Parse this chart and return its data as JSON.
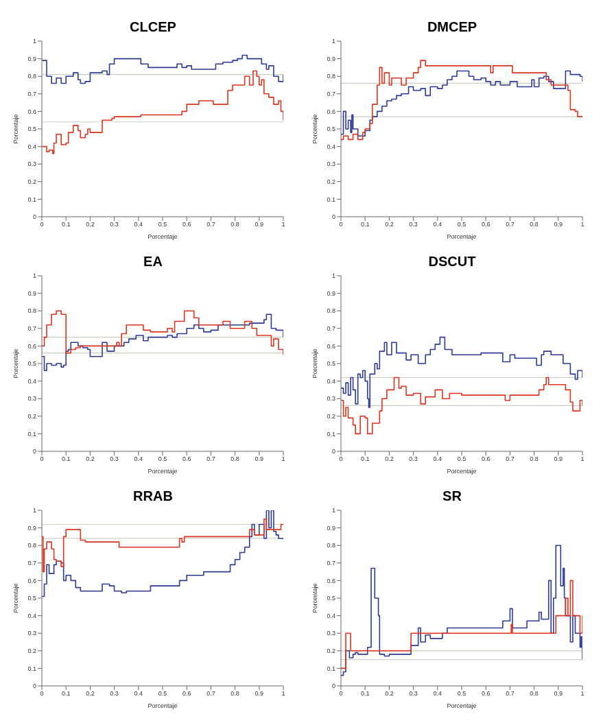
{
  "chart_data": [
    {
      "type": "step",
      "title": "CLCEP",
      "xlabel": "Porcentaje",
      "ylabel": "Porcentaje",
      "xlim": [
        0,
        1
      ],
      "ylim": [
        0,
        1
      ],
      "xticks": [
        0,
        0.1,
        0.2,
        0.3,
        0.4,
        0.5,
        0.6,
        0.7,
        0.8,
        0.9,
        1
      ],
      "yticks": [
        0,
        0.1,
        0.2,
        0.3,
        0.4,
        0.5,
        0.6,
        0.7,
        0.8,
        0.9,
        1
      ],
      "ref_lines": [
        {
          "axis": "y",
          "value": 0.81,
          "color": "#c8cfc0"
        },
        {
          "axis": "y",
          "value": 0.54,
          "color": "#c8cfc0"
        }
      ],
      "series": [
        {
          "color": "#2b3a97",
          "x": [
            0,
            0.02,
            0.04,
            0.06,
            0.08,
            0.1,
            0.12,
            0.13,
            0.15,
            0.16,
            0.18,
            0.2,
            0.25,
            0.27,
            0.28,
            0.3,
            0.4,
            0.41,
            0.44,
            0.55,
            0.56,
            0.58,
            0.6,
            0.62,
            0.7,
            0.72,
            0.75,
            0.79,
            0.81,
            0.83,
            0.85,
            0.9,
            0.91,
            0.93,
            0.94,
            0.96,
            0.98,
            1
          ],
          "values": [
            0.89,
            0.8,
            0.76,
            0.79,
            0.76,
            0.8,
            0.8,
            0.82,
            0.78,
            0.76,
            0.77,
            0.82,
            0.83,
            0.81,
            0.87,
            0.9,
            0.9,
            0.87,
            0.85,
            0.85,
            0.87,
            0.85,
            0.86,
            0.84,
            0.84,
            0.87,
            0.88,
            0.89,
            0.9,
            0.92,
            0.9,
            0.9,
            0.87,
            0.84,
            0.86,
            0.8,
            0.77,
            0.81
          ]
        },
        {
          "color": "#e0321c",
          "x": [
            0,
            0.02,
            0.03,
            0.045,
            0.05,
            0.06,
            0.08,
            0.1,
            0.11,
            0.13,
            0.15,
            0.16,
            0.18,
            0.19,
            0.2,
            0.24,
            0.25,
            0.29,
            0.3,
            0.4,
            0.41,
            0.57,
            0.58,
            0.6,
            0.65,
            0.71,
            0.76,
            0.77,
            0.79,
            0.82,
            0.84,
            0.86,
            0.875,
            0.89,
            0.9,
            0.91,
            0.92,
            0.94,
            0.96,
            0.98,
            0.99,
            1
          ],
          "values": [
            0.4,
            0.37,
            0.38,
            0.36,
            0.42,
            0.47,
            0.41,
            0.42,
            0.48,
            0.52,
            0.49,
            0.45,
            0.47,
            0.5,
            0.48,
            0.48,
            0.55,
            0.56,
            0.57,
            0.57,
            0.58,
            0.58,
            0.6,
            0.64,
            0.66,
            0.64,
            0.64,
            0.72,
            0.75,
            0.75,
            0.8,
            0.75,
            0.83,
            0.8,
            0.75,
            0.78,
            0.7,
            0.68,
            0.64,
            0.66,
            0.6,
            0.55
          ]
        }
      ]
    },
    {
      "type": "step",
      "title": "DMCEP",
      "xlabel": "Porcentaje",
      "ylabel": "Porcentaje",
      "xlim": [
        0,
        1
      ],
      "ylim": [
        0,
        1
      ],
      "xticks": [
        0,
        0.1,
        0.2,
        0.3,
        0.4,
        0.5,
        0.6,
        0.7,
        0.8,
        0.9,
        1
      ],
      "yticks": [
        0,
        0.1,
        0.2,
        0.3,
        0.4,
        0.5,
        0.6,
        0.7,
        0.8,
        0.9,
        1
      ],
      "ref_lines": [
        {
          "axis": "y",
          "value": 0.76,
          "color": "#c8cfc0"
        },
        {
          "axis": "y",
          "value": 0.57,
          "color": "#c8cfc0"
        }
      ],
      "series": [
        {
          "color": "#2b3a97",
          "x": [
            0,
            0.01,
            0.02,
            0.03,
            0.04,
            0.045,
            0.05,
            0.07,
            0.09,
            0.1,
            0.12,
            0.13,
            0.15,
            0.17,
            0.19,
            0.21,
            0.23,
            0.25,
            0.28,
            0.3,
            0.33,
            0.35,
            0.37,
            0.4,
            0.42,
            0.44,
            0.46,
            0.48,
            0.51,
            0.53,
            0.55,
            0.58,
            0.6,
            0.62,
            0.64,
            0.66,
            0.7,
            0.73,
            0.77,
            0.79,
            0.8,
            0.82,
            0.84,
            0.86,
            0.88,
            0.91,
            0.93,
            0.95,
            0.99,
            1
          ],
          "values": [
            0.47,
            0.6,
            0.5,
            0.55,
            0.48,
            0.58,
            0.5,
            0.46,
            0.46,
            0.49,
            0.55,
            0.57,
            0.6,
            0.63,
            0.66,
            0.67,
            0.69,
            0.7,
            0.74,
            0.72,
            0.73,
            0.69,
            0.74,
            0.73,
            0.75,
            0.78,
            0.8,
            0.83,
            0.83,
            0.8,
            0.78,
            0.79,
            0.77,
            0.75,
            0.77,
            0.75,
            0.77,
            0.74,
            0.74,
            0.78,
            0.74,
            0.79,
            0.8,
            0.77,
            0.73,
            0.73,
            0.83,
            0.81,
            0.8,
            0.77
          ]
        },
        {
          "color": "#e0321c",
          "x": [
            0,
            0.01,
            0.03,
            0.05,
            0.07,
            0.09,
            0.1,
            0.12,
            0.13,
            0.15,
            0.16,
            0.17,
            0.18,
            0.2,
            0.21,
            0.24,
            0.25,
            0.27,
            0.3,
            0.32,
            0.33,
            0.35,
            0.61,
            0.62,
            0.63,
            0.7,
            0.71,
            0.84,
            0.85,
            0.87,
            0.93,
            0.94,
            0.95,
            0.97,
            0.98,
            1
          ],
          "values": [
            0.44,
            0.46,
            0.44,
            0.47,
            0.44,
            0.48,
            0.5,
            0.53,
            0.64,
            0.75,
            0.85,
            0.76,
            0.82,
            0.75,
            0.79,
            0.79,
            0.75,
            0.79,
            0.82,
            0.85,
            0.89,
            0.86,
            0.86,
            0.82,
            0.86,
            0.86,
            0.82,
            0.82,
            0.78,
            0.75,
            0.75,
            0.72,
            0.61,
            0.6,
            0.57,
            0.57
          ]
        }
      ]
    },
    {
      "type": "step",
      "title": "EA",
      "xlabel": "Porcentaje",
      "ylabel": "Porcentaje",
      "xlim": [
        0,
        1
      ],
      "ylim": [
        0,
        1
      ],
      "xticks": [
        0,
        0.1,
        0.2,
        0.3,
        0.4,
        0.5,
        0.6,
        0.7,
        0.8,
        0.9,
        1
      ],
      "yticks": [
        0,
        0.1,
        0.2,
        0.3,
        0.4,
        0.5,
        0.6,
        0.7,
        0.8,
        0.9,
        1
      ],
      "ref_lines": [
        {
          "axis": "y",
          "value": 0.65,
          "color": "#c8cfc0"
        },
        {
          "axis": "y",
          "value": 0.56,
          "color": "#c8cfc0"
        }
      ],
      "series": [
        {
          "color": "#2b3a97",
          "x": [
            0,
            0.01,
            0.02,
            0.04,
            0.06,
            0.08,
            0.09,
            0.1,
            0.11,
            0.12,
            0.15,
            0.17,
            0.19,
            0.2,
            0.24,
            0.25,
            0.27,
            0.3,
            0.32,
            0.34,
            0.36,
            0.39,
            0.42,
            0.44,
            0.49,
            0.52,
            0.54,
            0.56,
            0.6,
            0.63,
            0.65,
            0.67,
            0.7,
            0.73,
            0.8,
            0.86,
            0.9,
            0.92,
            0.93,
            0.94,
            0.95,
            0.97,
            1
          ],
          "values": [
            0.54,
            0.46,
            0.5,
            0.49,
            0.5,
            0.48,
            0.49,
            0.57,
            0.58,
            0.62,
            0.6,
            0.59,
            0.58,
            0.54,
            0.54,
            0.62,
            0.57,
            0.6,
            0.6,
            0.62,
            0.64,
            0.66,
            0.63,
            0.65,
            0.65,
            0.66,
            0.65,
            0.67,
            0.7,
            0.72,
            0.7,
            0.68,
            0.69,
            0.72,
            0.72,
            0.73,
            0.73,
            0.75,
            0.78,
            0.78,
            0.7,
            0.69,
            0.65
          ]
        },
        {
          "color": "#e0321c",
          "x": [
            0,
            0.01,
            0.02,
            0.04,
            0.06,
            0.07,
            0.08,
            0.09,
            0.1,
            0.12,
            0.14,
            0.16,
            0.3,
            0.31,
            0.32,
            0.33,
            0.35,
            0.4,
            0.42,
            0.45,
            0.51,
            0.52,
            0.54,
            0.55,
            0.58,
            0.59,
            0.62,
            0.63,
            0.65,
            0.71,
            0.75,
            0.78,
            0.83,
            0.84,
            0.87,
            0.89,
            0.94,
            0.95,
            0.96,
            0.98,
            1
          ],
          "values": [
            0.6,
            0.65,
            0.72,
            0.78,
            0.8,
            0.8,
            0.78,
            0.78,
            0.56,
            0.58,
            0.59,
            0.6,
            0.6,
            0.62,
            0.6,
            0.67,
            0.72,
            0.72,
            0.69,
            0.68,
            0.68,
            0.7,
            0.68,
            0.74,
            0.74,
            0.8,
            0.8,
            0.76,
            0.72,
            0.72,
            0.74,
            0.7,
            0.7,
            0.74,
            0.7,
            0.66,
            0.66,
            0.6,
            0.64,
            0.58,
            0.55
          ]
        }
      ]
    },
    {
      "type": "step",
      "title": "DSCUT",
      "xlabel": "Porcentaje",
      "ylabel": "Porcentaje",
      "xlim": [
        0,
        1
      ],
      "ylim": [
        0,
        1
      ],
      "xticks": [
        0,
        0.1,
        0.2,
        0.3,
        0.4,
        0.5,
        0.6,
        0.7,
        0.8,
        0.9,
        1
      ],
      "yticks": [
        0,
        0.1,
        0.2,
        0.3,
        0.4,
        0.5,
        0.6,
        0.7,
        0.8,
        0.9,
        1
      ],
      "ref_lines": [
        {
          "axis": "y",
          "value": 0.42,
          "color": "#c8cfc0"
        },
        {
          "axis": "y",
          "value": 0.26,
          "color": "#c8cfc0"
        }
      ],
      "series": [
        {
          "color": "#2b3a97",
          "x": [
            0,
            0.01,
            0.02,
            0.03,
            0.04,
            0.05,
            0.06,
            0.07,
            0.08,
            0.09,
            0.1,
            0.11,
            0.115,
            0.12,
            0.14,
            0.15,
            0.16,
            0.18,
            0.19,
            0.21,
            0.23,
            0.25,
            0.27,
            0.29,
            0.32,
            0.35,
            0.37,
            0.39,
            0.41,
            0.43,
            0.46,
            0.54,
            0.58,
            0.66,
            0.67,
            0.7,
            0.72,
            0.8,
            0.81,
            0.83,
            0.84,
            0.87,
            0.9,
            0.92,
            0.95,
            0.97,
            0.98,
            1
          ],
          "values": [
            0.36,
            0.33,
            0.39,
            0.32,
            0.42,
            0.35,
            0.27,
            0.44,
            0.42,
            0.46,
            0.4,
            0.3,
            0.25,
            0.44,
            0.5,
            0.47,
            0.57,
            0.62,
            0.55,
            0.62,
            0.56,
            0.56,
            0.52,
            0.55,
            0.5,
            0.55,
            0.58,
            0.61,
            0.65,
            0.58,
            0.55,
            0.55,
            0.56,
            0.56,
            0.51,
            0.55,
            0.53,
            0.53,
            0.49,
            0.55,
            0.57,
            0.55,
            0.55,
            0.5,
            0.44,
            0.41,
            0.46,
            0.42
          ]
        },
        {
          "color": "#e0321c",
          "x": [
            0,
            0.01,
            0.02,
            0.03,
            0.05,
            0.06,
            0.08,
            0.1,
            0.11,
            0.13,
            0.15,
            0.16,
            0.17,
            0.19,
            0.22,
            0.24,
            0.25,
            0.27,
            0.3,
            0.33,
            0.35,
            0.39,
            0.42,
            0.45,
            0.5,
            0.67,
            0.68,
            0.7,
            0.8,
            0.82,
            0.84,
            0.85,
            0.86,
            0.92,
            0.93,
            0.95,
            0.96,
            0.98,
            0.99,
            1
          ],
          "values": [
            0.29,
            0.2,
            0.25,
            0.19,
            0.15,
            0.1,
            0.2,
            0.19,
            0.1,
            0.16,
            0.16,
            0.23,
            0.3,
            0.35,
            0.42,
            0.36,
            0.37,
            0.32,
            0.33,
            0.27,
            0.31,
            0.35,
            0.3,
            0.33,
            0.32,
            0.32,
            0.29,
            0.32,
            0.32,
            0.35,
            0.38,
            0.42,
            0.38,
            0.38,
            0.35,
            0.28,
            0.23,
            0.23,
            0.29,
            0.26
          ]
        }
      ]
    },
    {
      "type": "step",
      "title": "RRAB",
      "xlabel": "Porcentaje",
      "ylabel": "Porcentaje",
      "xlim": [
        0,
        1
      ],
      "ylim": [
        0,
        1
      ],
      "xticks": [
        0,
        0.1,
        0.2,
        0.3,
        0.4,
        0.5,
        0.6,
        0.7,
        0.8,
        0.9,
        1
      ],
      "yticks": [
        0,
        0.1,
        0.2,
        0.3,
        0.4,
        0.5,
        0.6,
        0.7,
        0.8,
        0.9,
        1
      ],
      "ref_lines": [
        {
          "axis": "y",
          "value": 0.92,
          "color": "#c8cfc0"
        },
        {
          "axis": "y",
          "value": 0.84,
          "color": "#c8cfc0"
        }
      ],
      "series": [
        {
          "color": "#2b3a97",
          "x": [
            0,
            0.01,
            0.02,
            0.03,
            0.05,
            0.06,
            0.08,
            0.09,
            0.1,
            0.12,
            0.14,
            0.16,
            0.24,
            0.25,
            0.28,
            0.3,
            0.33,
            0.35,
            0.43,
            0.45,
            0.56,
            0.57,
            0.6,
            0.66,
            0.67,
            0.77,
            0.78,
            0.8,
            0.82,
            0.84,
            0.86,
            0.87,
            0.88,
            0.9,
            0.92,
            0.93,
            0.94,
            0.95,
            0.96,
            0.97,
            0.98,
            1
          ],
          "values": [
            0.51,
            0.58,
            0.69,
            0.64,
            0.69,
            0.71,
            0.7,
            0.6,
            0.63,
            0.6,
            0.56,
            0.54,
            0.54,
            0.58,
            0.57,
            0.54,
            0.53,
            0.54,
            0.54,
            0.57,
            0.57,
            0.6,
            0.63,
            0.63,
            0.65,
            0.65,
            0.69,
            0.72,
            0.76,
            0.79,
            0.85,
            0.92,
            0.86,
            0.92,
            0.84,
            1,
            0.9,
            1,
            0.88,
            0.86,
            0.84,
            0.84
          ]
        },
        {
          "color": "#e0321c",
          "x": [
            0,
            0.005,
            0.01,
            0.02,
            0.03,
            0.04,
            0.05,
            0.06,
            0.08,
            0.09,
            0.1,
            0.15,
            0.16,
            0.18,
            0.31,
            0.32,
            0.56,
            0.57,
            0.58,
            0.59,
            0.84,
            0.86,
            0.88,
            0.91,
            0.92,
            0.93,
            0.96,
            0.98,
            0.99,
            1
          ],
          "values": [
            0.85,
            0.65,
            0.78,
            0.82,
            0.82,
            0.78,
            0.72,
            0.71,
            0.68,
            0.85,
            0.89,
            0.89,
            0.83,
            0.82,
            0.82,
            0.79,
            0.79,
            0.84,
            0.82,
            0.85,
            0.85,
            0.89,
            0.86,
            0.86,
            0.95,
            0.89,
            0.89,
            0.89,
            0.92,
            0.92
          ]
        }
      ]
    },
    {
      "type": "step",
      "title": "SR",
      "xlabel": "Porcentaje",
      "ylabel": "Porcentaje",
      "xlim": [
        0,
        1
      ],
      "ylim": [
        0,
        1
      ],
      "xticks": [
        0,
        0.1,
        0.2,
        0.3,
        0.4,
        0.5,
        0.6,
        0.7,
        0.8,
        0.9,
        1
      ],
      "yticks": [
        0,
        0.1,
        0.2,
        0.3,
        0.4,
        0.5,
        0.6,
        0.7,
        0.8,
        0.9,
        1
      ],
      "ref_lines": [
        {
          "axis": "y",
          "value": 0.2,
          "color": "#c8cfc0"
        },
        {
          "axis": "y",
          "value": 0.15,
          "color": "#c8cfc0"
        }
      ],
      "series": [
        {
          "color": "#2b3a97",
          "x": [
            0,
            0.01,
            0.02,
            0.03,
            0.035,
            0.05,
            0.06,
            0.07,
            0.1,
            0.11,
            0.125,
            0.135,
            0.14,
            0.155,
            0.16,
            0.18,
            0.2,
            0.28,
            0.29,
            0.32,
            0.33,
            0.35,
            0.37,
            0.41,
            0.42,
            0.44,
            0.66,
            0.67,
            0.7,
            0.71,
            0.76,
            0.77,
            0.8,
            0.82,
            0.83,
            0.86,
            0.87,
            0.88,
            0.89,
            0.9,
            0.91,
            0.92,
            0.925,
            0.93,
            0.95,
            0.96,
            0.97,
            0.99,
            0.995,
            1
          ],
          "values": [
            0.06,
            0.08,
            0.2,
            0.2,
            0.16,
            0.18,
            0.19,
            0.18,
            0.18,
            0.22,
            0.67,
            0.67,
            0.5,
            0.4,
            0.18,
            0.17,
            0.18,
            0.18,
            0.23,
            0.33,
            0.25,
            0.29,
            0.27,
            0.27,
            0.3,
            0.33,
            0.33,
            0.37,
            0.44,
            0.33,
            0.33,
            0.37,
            0.37,
            0.42,
            0.38,
            0.6,
            0.3,
            0.5,
            0.8,
            0.8,
            0.57,
            0.67,
            0.5,
            0.4,
            0.25,
            0.4,
            0.3,
            0.22,
            0.28,
            0.15
          ]
        },
        {
          "color": "#e0321c",
          "x": [
            0,
            0.01,
            0.02,
            0.03,
            0.04,
            0.28,
            0.29,
            0.7,
            0.705,
            0.71,
            0.88,
            0.89,
            0.92,
            0.93,
            0.94,
            0.95,
            0.96,
            0.98,
            0.99,
            1
          ],
          "values": [
            0.1,
            0.1,
            0.3,
            0.3,
            0.2,
            0.2,
            0.3,
            0.3,
            0.35,
            0.3,
            0.3,
            0.4,
            0.4,
            0.5,
            0.4,
            0.6,
            0.4,
            0.4,
            0.3,
            0.4
          ]
        }
      ]
    }
  ]
}
